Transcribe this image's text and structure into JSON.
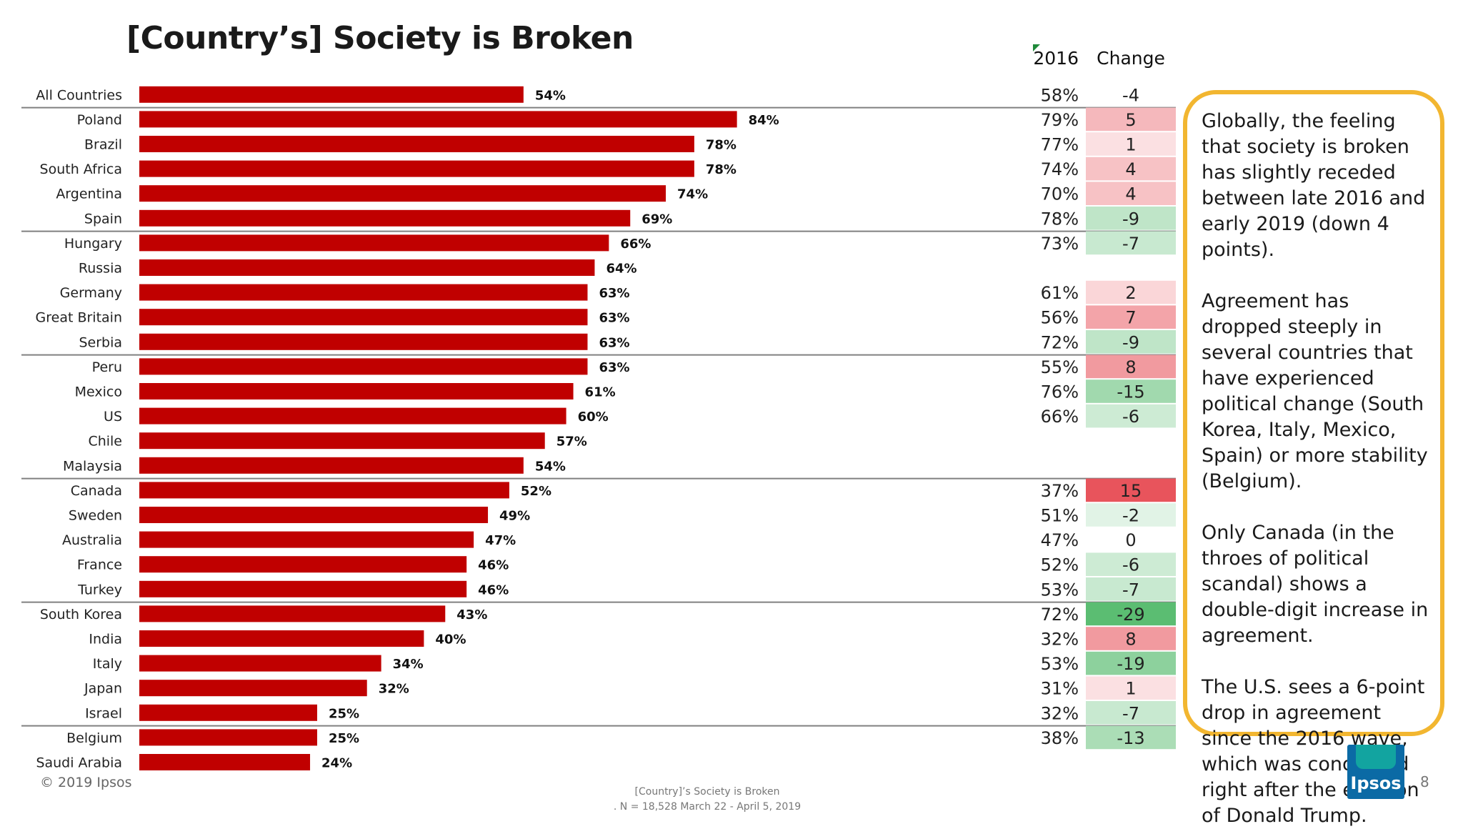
{
  "slide": {
    "title": "[Country’s] Society is Broken",
    "copyright": "© 2019 Ipsos",
    "footer_line1": "[Country]’s Society is Broken",
    "footer_line2": ". N = 18,528  March 22 - April 5, 2019",
    "logo_text": "Ipsos",
    "page_number": "8"
  },
  "colors": {
    "bar": "#c00000",
    "group_line": "#808080",
    "callout_border": "#f2b630",
    "increase_color": "#e8545c",
    "decrease_color": "#5bbd72",
    "neutral_color": "#ffffff"
  },
  "chart_data": {
    "type": "bar",
    "orientation": "horizontal",
    "title": "[Country’s] Society is Broken",
    "columns": {
      "y2016": "2016",
      "change": "Change"
    },
    "xlim": [
      0,
      100
    ],
    "group_separators_after": [
      "All Countries",
      "Spain",
      "Serbia",
      "Malaysia",
      "Turkey",
      "Israel"
    ],
    "categories": [
      "All Countries",
      "Poland",
      "Brazil",
      "South Africa",
      "Argentina",
      "Spain",
      "Hungary",
      "Russia",
      "Germany",
      "Great Britain",
      "Serbia",
      "Peru",
      "Mexico",
      "US",
      "Chile",
      "Malaysia",
      "Canada",
      "Sweden",
      "Australia",
      "France",
      "Turkey",
      "South Korea",
      "India",
      "Italy",
      "Japan",
      "Israel",
      "Belgium",
      "Saudi Arabia"
    ],
    "values": [
      54,
      84,
      78,
      78,
      74,
      69,
      66,
      64,
      63,
      63,
      63,
      63,
      61,
      60,
      57,
      54,
      52,
      49,
      47,
      46,
      46,
      43,
      40,
      34,
      32,
      25,
      25,
      24
    ],
    "labels": [
      "54%",
      "84%",
      "78%",
      "78%",
      "74%",
      "69%",
      "66%",
      "64%",
      "63%",
      "63%",
      "63%",
      "63%",
      "61%",
      "60%",
      "57%",
      "54%",
      "52%",
      "49%",
      "47%",
      "46%",
      "46%",
      "43%",
      "40%",
      "34%",
      "32%",
      "25%",
      "25%",
      "24%"
    ],
    "values_2016": [
      "58%",
      "79%",
      "77%",
      "74%",
      "70%",
      "78%",
      "73%",
      "",
      "61%",
      "56%",
      "72%",
      "55%",
      "76%",
      "66%",
      "",
      "",
      "37%",
      "51%",
      "47%",
      "52%",
      "53%",
      "72%",
      "32%",
      "53%",
      "31%",
      "32%",
      "38%",
      ""
    ],
    "change": [
      -4,
      5,
      1,
      4,
      4,
      -9,
      -7,
      null,
      2,
      7,
      -9,
      8,
      -15,
      -6,
      null,
      null,
      15,
      -2,
      0,
      -6,
      -7,
      -29,
      8,
      -19,
      1,
      -7,
      -13,
      null
    ]
  },
  "callout": {
    "paragraphs": [
      "Globally, the feeling that society is broken has slightly receded between late 2016 and early 2019 (down 4 points).",
      "Agreement has dropped steeply in several countries that have experienced political change (South Korea, Italy, Mexico, Spain) or more stability (Belgium).",
      "Only Canada (in the throes of political scandal) shows a double-digit increase in agreement.",
      "The U.S. sees a 6-point drop in agreement since the 2016 wave, which was conducted right after the election of Donald Trump."
    ]
  }
}
